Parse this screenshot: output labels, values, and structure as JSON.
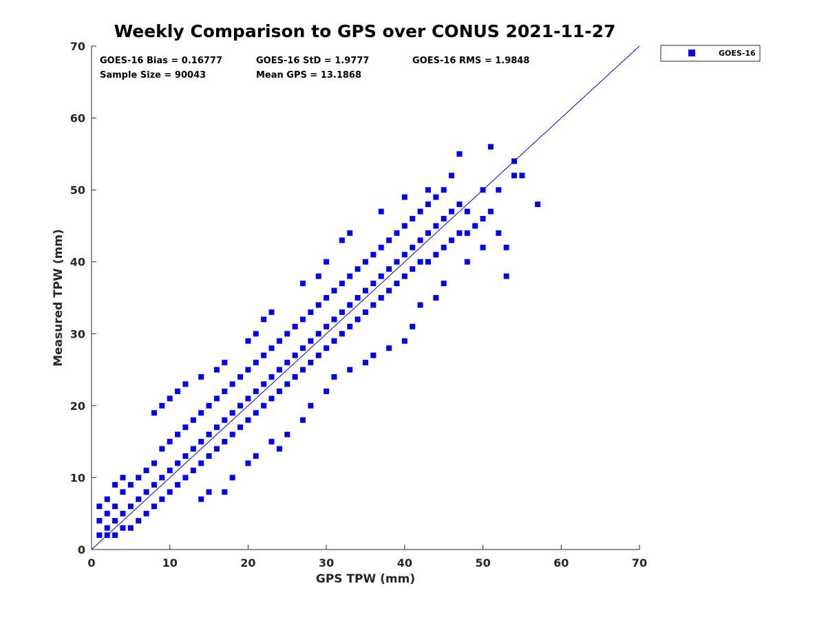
{
  "chart_data": {
    "type": "scatter",
    "title": "Weekly Comparison to GPS over CONUS 2021-11-27",
    "xlabel": "GPS TPW (mm)",
    "ylabel": "Measured TPW (mm)",
    "xlim": [
      0,
      70
    ],
    "ylim": [
      0,
      70
    ],
    "xticks": [
      "0",
      "10",
      "20",
      "30",
      "40",
      "50",
      "60",
      "70"
    ],
    "yticks": [
      "0",
      "10",
      "20",
      "30",
      "40",
      "50",
      "60",
      "70"
    ],
    "grid": false,
    "legend": {
      "position": "top-right-outside",
      "entries": [
        "GOES-16"
      ]
    },
    "annotations": {
      "bias": "GOES-16 Bias = 0.16777",
      "std": "GOES-16 StD = 1.9777",
      "rms": "GOES-16 RMS = 1.9848",
      "sample_size": "Sample Size = 90043",
      "mean_gps": "Mean GPS = 13.1868"
    },
    "reference_line": {
      "name": "1:1 line",
      "from": [
        0,
        0
      ],
      "to": [
        70,
        70
      ],
      "color": "#0000cc"
    },
    "series": [
      {
        "name": "GOES-16",
        "color": "#0000ee",
        "marker": "square",
        "points": [
          [
            1,
            2
          ],
          [
            1,
            4
          ],
          [
            1,
            6
          ],
          [
            2,
            2
          ],
          [
            2,
            3
          ],
          [
            2,
            5
          ],
          [
            2,
            7
          ],
          [
            3,
            2
          ],
          [
            3,
            4
          ],
          [
            3,
            6
          ],
          [
            3,
            9
          ],
          [
            4,
            3
          ],
          [
            4,
            5
          ],
          [
            4,
            8
          ],
          [
            4,
            10
          ],
          [
            5,
            3
          ],
          [
            5,
            6
          ],
          [
            5,
            9
          ],
          [
            6,
            4
          ],
          [
            6,
            7
          ],
          [
            6,
            10
          ],
          [
            7,
            5
          ],
          [
            7,
            8
          ],
          [
            7,
            11
          ],
          [
            8,
            6
          ],
          [
            8,
            9
          ],
          [
            8,
            12
          ],
          [
            9,
            7
          ],
          [
            9,
            10
          ],
          [
            9,
            14
          ],
          [
            10,
            8
          ],
          [
            10,
            11
          ],
          [
            10,
            15
          ],
          [
            11,
            9
          ],
          [
            11,
            12
          ],
          [
            11,
            16
          ],
          [
            12,
            10
          ],
          [
            12,
            13
          ],
          [
            12,
            17
          ],
          [
            13,
            11
          ],
          [
            13,
            14
          ],
          [
            13,
            18
          ],
          [
            14,
            12
          ],
          [
            14,
            15
          ],
          [
            14,
            19
          ],
          [
            15,
            13
          ],
          [
            15,
            16
          ],
          [
            15,
            20
          ],
          [
            16,
            14
          ],
          [
            16,
            17
          ],
          [
            16,
            21
          ],
          [
            17,
            15
          ],
          [
            17,
            18
          ],
          [
            17,
            22
          ],
          [
            18,
            16
          ],
          [
            18,
            19
          ],
          [
            18,
            23
          ],
          [
            19,
            17
          ],
          [
            19,
            20
          ],
          [
            19,
            24
          ],
          [
            20,
            18
          ],
          [
            20,
            21
          ],
          [
            20,
            25
          ],
          [
            21,
            19
          ],
          [
            21,
            22
          ],
          [
            21,
            26
          ],
          [
            22,
            20
          ],
          [
            22,
            23
          ],
          [
            22,
            27
          ],
          [
            23,
            21
          ],
          [
            23,
            24
          ],
          [
            23,
            28
          ],
          [
            24,
            22
          ],
          [
            24,
            25
          ],
          [
            24,
            29
          ],
          [
            25,
            23
          ],
          [
            25,
            26
          ],
          [
            25,
            30
          ],
          [
            26,
            24
          ],
          [
            26,
            27
          ],
          [
            26,
            31
          ],
          [
            27,
            25
          ],
          [
            27,
            28
          ],
          [
            27,
            32
          ],
          [
            28,
            26
          ],
          [
            28,
            29
          ],
          [
            28,
            33
          ],
          [
            29,
            27
          ],
          [
            29,
            30
          ],
          [
            29,
            34
          ],
          [
            30,
            28
          ],
          [
            30,
            31
          ],
          [
            30,
            35
          ],
          [
            31,
            29
          ],
          [
            31,
            32
          ],
          [
            31,
            36
          ],
          [
            32,
            30
          ],
          [
            32,
            33
          ],
          [
            32,
            37
          ],
          [
            33,
            31
          ],
          [
            33,
            34
          ],
          [
            33,
            38
          ],
          [
            34,
            32
          ],
          [
            34,
            35
          ],
          [
            34,
            39
          ],
          [
            35,
            33
          ],
          [
            35,
            36
          ],
          [
            35,
            40
          ],
          [
            36,
            34
          ],
          [
            36,
            37
          ],
          [
            36,
            41
          ],
          [
            37,
            35
          ],
          [
            37,
            38
          ],
          [
            37,
            42
          ],
          [
            38,
            36
          ],
          [
            38,
            39
          ],
          [
            38,
            43
          ],
          [
            39,
            37
          ],
          [
            39,
            40
          ],
          [
            39,
            44
          ],
          [
            40,
            38
          ],
          [
            40,
            41
          ],
          [
            40,
            45
          ],
          [
            41,
            39
          ],
          [
            41,
            42
          ],
          [
            41,
            46
          ],
          [
            42,
            40
          ],
          [
            42,
            43
          ],
          [
            42,
            47
          ],
          [
            43,
            40
          ],
          [
            43,
            44
          ],
          [
            43,
            48
          ],
          [
            44,
            41
          ],
          [
            44,
            45
          ],
          [
            44,
            49
          ],
          [
            45,
            42
          ],
          [
            45,
            46
          ],
          [
            45,
            50
          ],
          [
            46,
            43
          ],
          [
            46,
            47
          ],
          [
            47,
            44
          ],
          [
            47,
            48
          ],
          [
            48,
            44
          ],
          [
            48,
            47
          ],
          [
            49,
            45
          ],
          [
            50,
            46
          ],
          [
            51,
            47
          ],
          [
            52,
            44
          ],
          [
            8,
            19
          ],
          [
            9,
            20
          ],
          [
            10,
            21
          ],
          [
            11,
            22
          ],
          [
            12,
            23
          ],
          [
            14,
            24
          ],
          [
            16,
            25
          ],
          [
            17,
            26
          ],
          [
            20,
            29
          ],
          [
            21,
            30
          ],
          [
            22,
            32
          ],
          [
            23,
            33
          ],
          [
            27,
            37
          ],
          [
            29,
            38
          ],
          [
            30,
            40
          ],
          [
            32,
            43
          ],
          [
            33,
            44
          ],
          [
            37,
            47
          ],
          [
            40,
            49
          ],
          [
            43,
            50
          ],
          [
            46,
            52
          ],
          [
            47,
            55
          ],
          [
            50,
            50
          ],
          [
            51,
            56
          ],
          [
            52,
            50
          ],
          [
            54,
            54
          ],
          [
            54,
            52
          ],
          [
            55,
            52
          ],
          [
            57,
            48
          ],
          [
            53,
            38
          ],
          [
            53,
            42
          ],
          [
            48,
            40
          ],
          [
            50,
            42
          ],
          [
            14,
            7
          ],
          [
            15,
            8
          ],
          [
            17,
            8
          ],
          [
            18,
            10
          ],
          [
            20,
            12
          ],
          [
            21,
            13
          ],
          [
            23,
            15
          ],
          [
            24,
            14
          ],
          [
            25,
            16
          ],
          [
            27,
            18
          ],
          [
            28,
            20
          ],
          [
            30,
            22
          ],
          [
            31,
            24
          ],
          [
            33,
            25
          ],
          [
            35,
            26
          ],
          [
            36,
            27
          ],
          [
            38,
            28
          ],
          [
            40,
            29
          ],
          [
            41,
            31
          ],
          [
            42,
            34
          ],
          [
            44,
            35
          ],
          [
            45,
            37
          ]
        ]
      }
    ]
  }
}
